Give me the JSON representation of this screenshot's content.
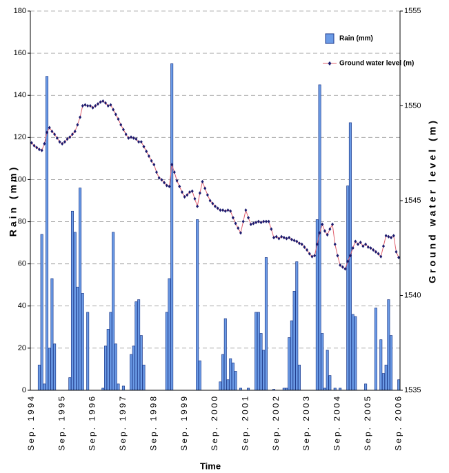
{
  "chart_data": {
    "type": "bar",
    "x_label": "Time",
    "y_label": "Rain (mm)",
    "y2_label": "Ground water level (m)",
    "categories": [
      "Sep. 1994",
      null,
      null,
      null,
      null,
      null,
      null,
      null,
      null,
      null,
      null,
      null,
      "Sep. 1995",
      null,
      null,
      null,
      null,
      null,
      null,
      null,
      null,
      null,
      null,
      null,
      "Sep. 1996",
      null,
      null,
      null,
      null,
      null,
      null,
      null,
      null,
      null,
      null,
      null,
      "Sep. 1997",
      null,
      null,
      null,
      null,
      null,
      null,
      null,
      null,
      null,
      null,
      null,
      "Sep. 1998",
      null,
      null,
      null,
      null,
      null,
      null,
      null,
      null,
      null,
      null,
      null,
      "Sep. 1999",
      null,
      null,
      null,
      null,
      null,
      null,
      null,
      null,
      null,
      null,
      null,
      "Sep. 2000",
      null,
      null,
      null,
      null,
      null,
      null,
      null,
      null,
      null,
      null,
      null,
      "Sep. 2001",
      null,
      null,
      null,
      null,
      null,
      null,
      null,
      null,
      null,
      null,
      null,
      "Sep. 2002",
      null,
      null,
      null,
      null,
      null,
      null,
      null,
      null,
      null,
      null,
      null,
      "Sep. 2003",
      null,
      null,
      null,
      null,
      null,
      null,
      null,
      null,
      null,
      null,
      null,
      "Sep. 2004",
      null,
      null,
      null,
      null,
      null,
      null,
      null,
      null,
      null,
      null,
      null,
      "Sep. 2005",
      null,
      null,
      null,
      null,
      null,
      null,
      null,
      null,
      null,
      null,
      null,
      "Sep. 2006"
    ],
    "series": [
      {
        "name": "Rain (mm)",
        "type": "bar",
        "axis": "y",
        "color": "#6b9be6",
        "edge_color": "#1f3a8a",
        "values": [
          0,
          0,
          0,
          12,
          74,
          3,
          149,
          20,
          53,
          22,
          0,
          0,
          0,
          0,
          0,
          6,
          85,
          75,
          49,
          96,
          46,
          0,
          37,
          0,
          0,
          0,
          0,
          0,
          1,
          21,
          29,
          37,
          75,
          22,
          3,
          0,
          2,
          0,
          0,
          17,
          21,
          42,
          43,
          26,
          12,
          0,
          0,
          0,
          0,
          0,
          0,
          0,
          0,
          37,
          53,
          155,
          0,
          0,
          0,
          0,
          0,
          0,
          0,
          0,
          0,
          81,
          14,
          0,
          0,
          0,
          0,
          0,
          0,
          0,
          4,
          17,
          34,
          5,
          15,
          13,
          9,
          0,
          1,
          0,
          0,
          1,
          0,
          0,
          37,
          37,
          27,
          19,
          63,
          0,
          0,
          0.5,
          0,
          0,
          0,
          1,
          1,
          25,
          33,
          47,
          61,
          12,
          0,
          0,
          0,
          0,
          0,
          0,
          81,
          145,
          27,
          1,
          19,
          7,
          0,
          1,
          0,
          1,
          0,
          0,
          97,
          127,
          36,
          35,
          0,
          0,
          0,
          3,
          0,
          0,
          0,
          39,
          0,
          24,
          8,
          12,
          43,
          26,
          0,
          0,
          5
        ]
      },
      {
        "name": "Ground water level (m)",
        "type": "line",
        "axis": "y2",
        "color": "#e0606e",
        "marker_color": "#1a1a6e",
        "values": [
          1548.05,
          1547.9,
          1547.8,
          1547.7,
          1547.65,
          1548.0,
          1548.6,
          1548.85,
          1548.65,
          1548.5,
          1548.3,
          1548.1,
          1548.0,
          1548.1,
          1548.25,
          1548.35,
          1548.5,
          1548.65,
          1549.0,
          1549.4,
          1550.0,
          1550.05,
          1550.0,
          1550.0,
          1549.9,
          1550.0,
          1550.1,
          1550.2,
          1550.25,
          1550.15,
          1550.0,
          1550.05,
          1549.8,
          1549.55,
          1549.3,
          1549.0,
          1548.75,
          1548.5,
          1548.3,
          1548.35,
          1548.3,
          1548.25,
          1548.1,
          1548.1,
          1547.85,
          1547.6,
          1547.35,
          1547.1,
          1546.9,
          1546.5,
          1546.2,
          1546.1,
          1545.95,
          1545.8,
          1545.75,
          1546.9,
          1546.5,
          1546.05,
          1545.75,
          1545.45,
          1545.2,
          1545.3,
          1545.45,
          1545.5,
          1545.1,
          1544.7,
          1545.4,
          1546.0,
          1545.65,
          1545.3,
          1545.0,
          1544.85,
          1544.7,
          1544.6,
          1544.5,
          1544.5,
          1544.45,
          1544.5,
          1544.45,
          1544.1,
          1543.8,
          1543.55,
          1543.3,
          1543.9,
          1544.5,
          1544.1,
          1543.75,
          1543.8,
          1543.85,
          1543.9,
          1543.85,
          1543.9,
          1543.9,
          1543.9,
          1543.5,
          1543.05,
          1543.1,
          1543.0,
          1543.1,
          1543.05,
          1543.0,
          1543.05,
          1542.95,
          1542.9,
          1542.85,
          1542.75,
          1542.7,
          1542.55,
          1542.4,
          1542.2,
          1542.05,
          1542.1,
          1542.7,
          1543.3,
          1543.75,
          1543.4,
          1543.2,
          1543.5,
          1543.75,
          1542.7,
          1542.1,
          1541.6,
          1541.5,
          1541.4,
          1541.8,
          1542.1,
          1542.5,
          1542.85,
          1542.7,
          1542.8,
          1542.6,
          1542.7,
          1542.55,
          1542.5,
          1542.4,
          1542.3,
          1542.2,
          1542.05,
          1542.6,
          1543.15,
          1543.1,
          1543.05,
          1543.15,
          1542.3,
          1542.0
        ]
      }
    ],
    "ylim": [
      0,
      180
    ],
    "yticks": [
      0,
      20,
      40,
      60,
      80,
      100,
      120,
      140,
      160,
      180
    ],
    "y2lim": [
      1535,
      1555
    ],
    "y2ticks": [
      1535,
      1540,
      1545,
      1550,
      1555
    ],
    "grid": true,
    "legend": "upper right"
  }
}
